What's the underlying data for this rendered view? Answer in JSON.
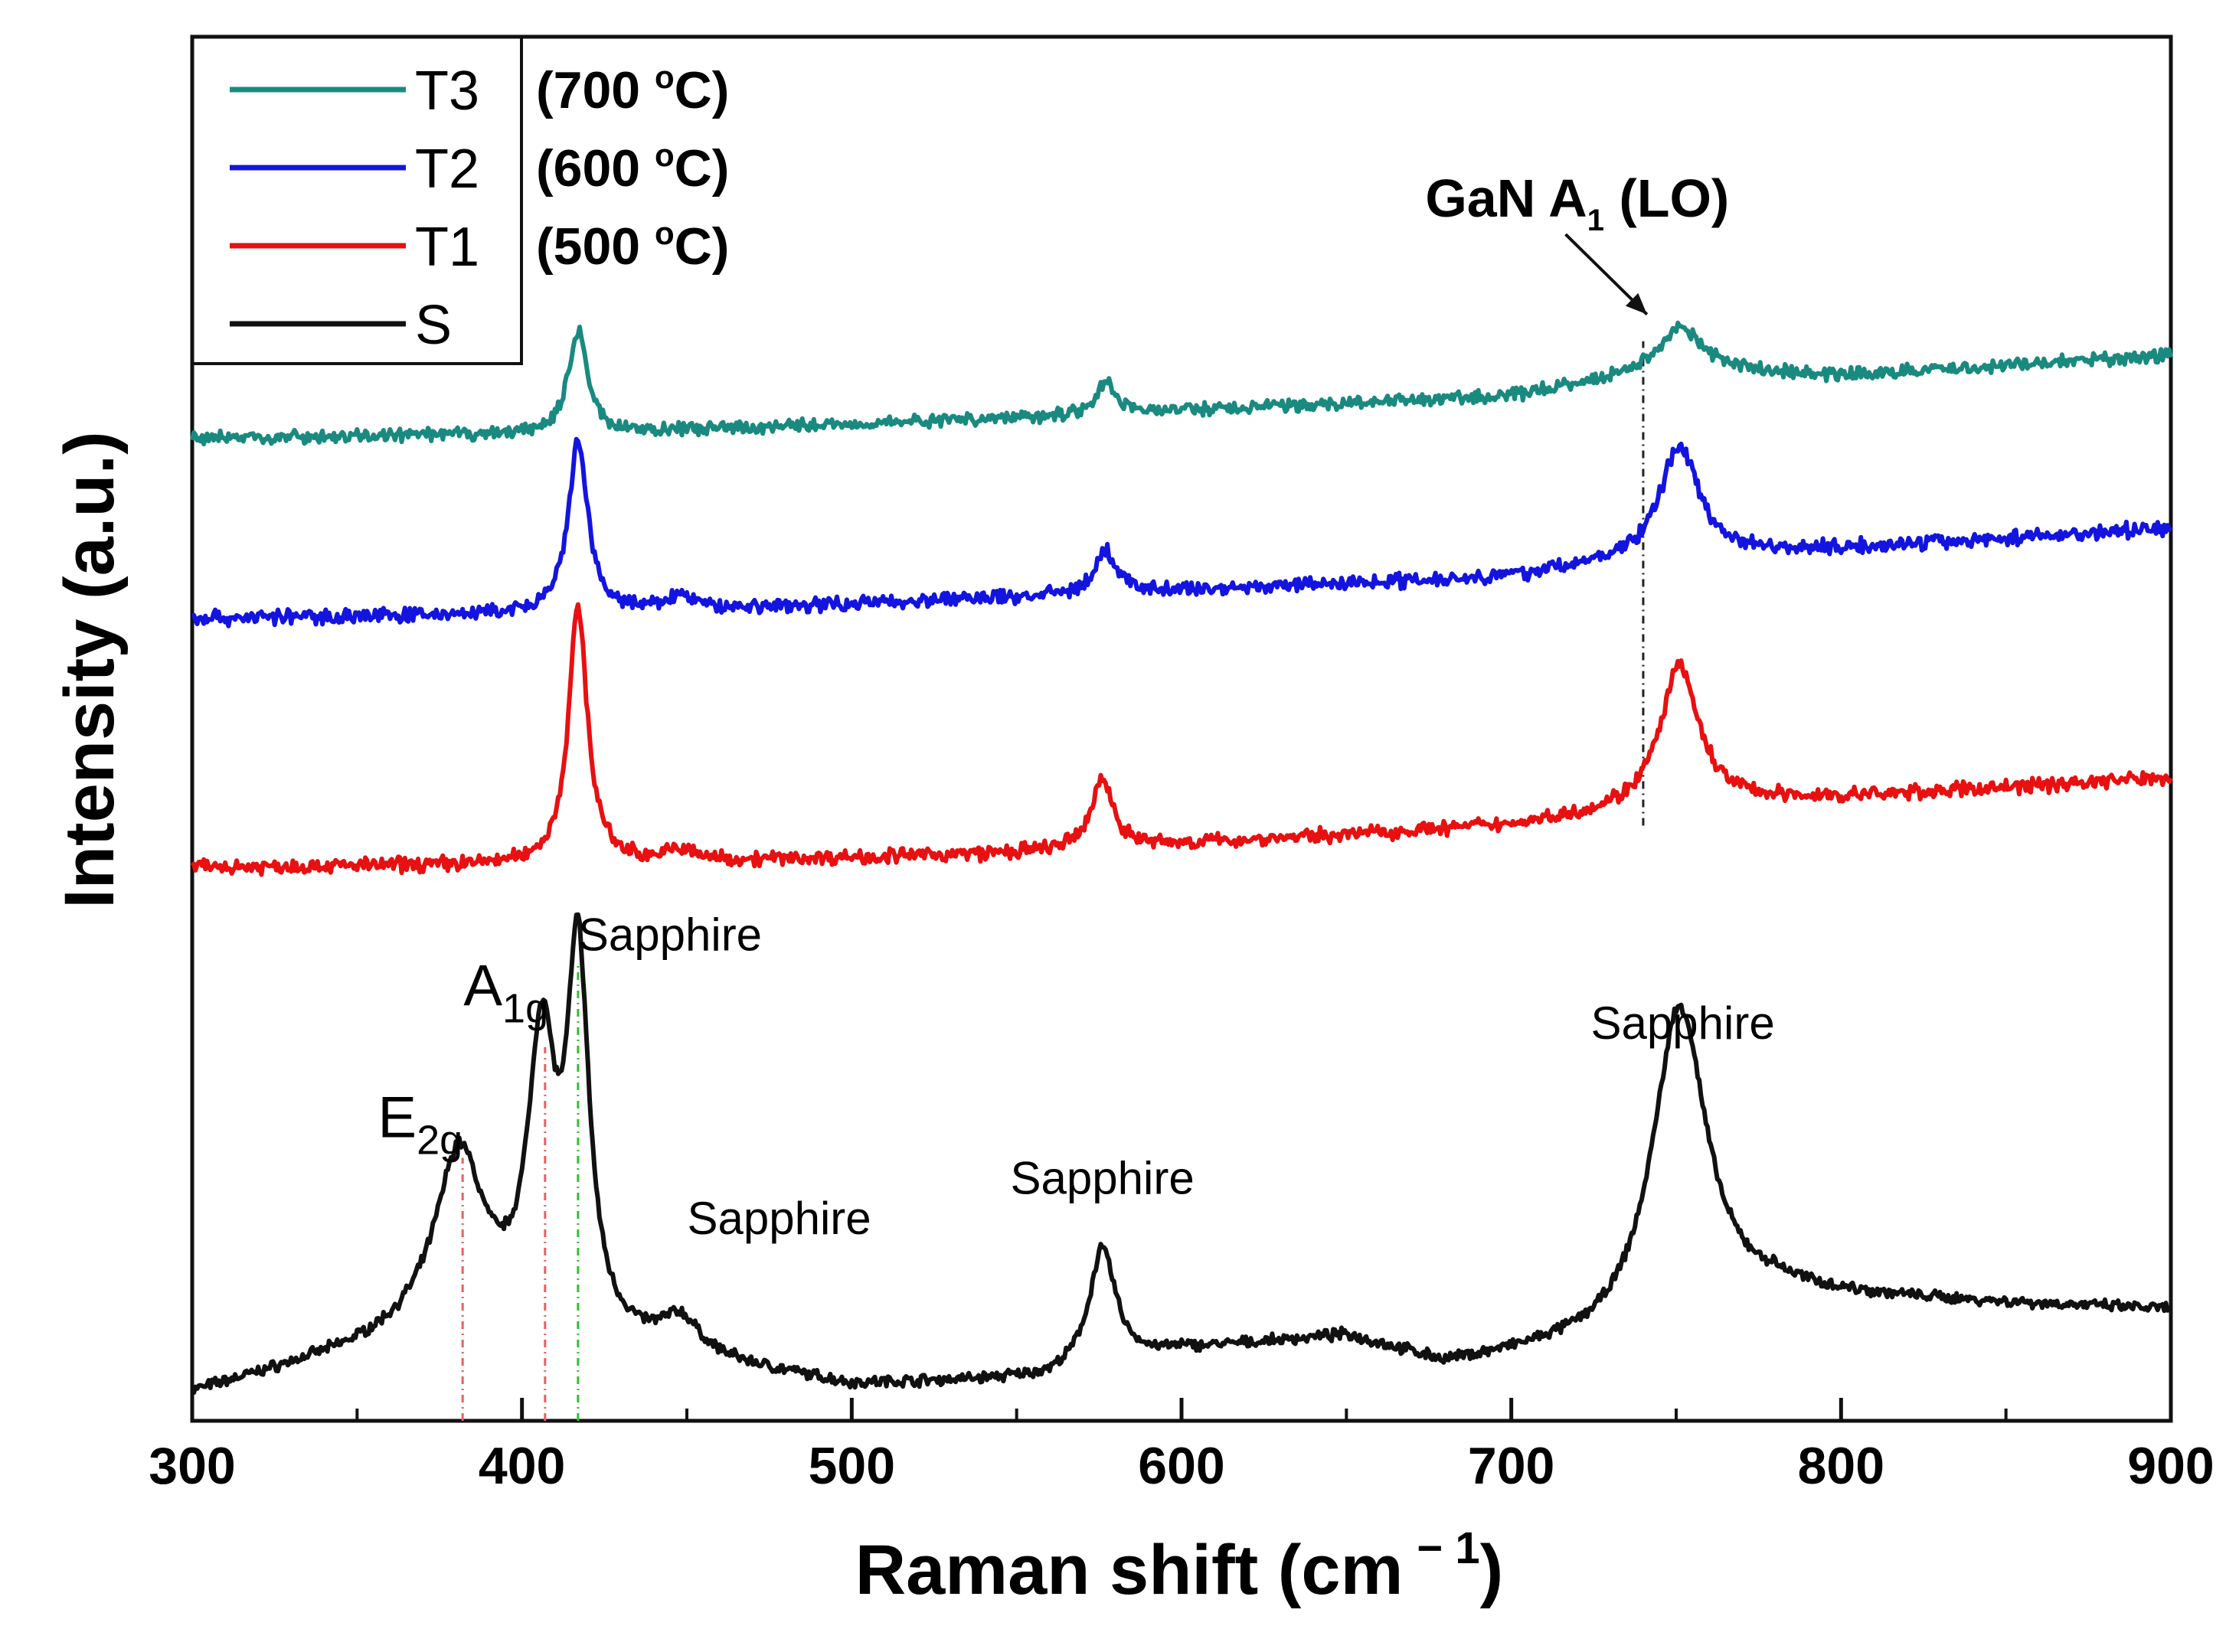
{
  "chart_data": {
    "type": "line",
    "title": "",
    "xlabel": "Raman shift (cm",
    "xlabel_sup": "− 1",
    "xlabel_close": ")",
    "ylabel": "Intensity (a.u.)",
    "xlim": [
      300,
      900
    ],
    "xticks": [
      300,
      400,
      500,
      600,
      700,
      800,
      900
    ],
    "xtick_labels": [
      "300",
      "400",
      "500",
      "600",
      "700",
      "800",
      "900"
    ],
    "ylim": [
      0,
      100
    ],
    "yticks_shown": false,
    "series": [
      {
        "name": "T3",
        "legend_label": "T3",
        "temperature": "(700 °C)",
        "temp_prefix": "(700 ",
        "temp_deg": "o",
        "temp_suffix": "C)",
        "color": "#1a8a80",
        "offset": 71,
        "baseline": [
          [
            300,
            0
          ],
          [
            420,
            0.3
          ],
          [
            550,
            1.5
          ],
          [
            700,
            3
          ],
          [
            750,
            5
          ],
          [
            800,
            4.5
          ],
          [
            900,
            6
          ]
        ],
        "peaks": [
          [
            417,
            7.5,
            3.5
          ],
          [
            577,
            2.3,
            3.5
          ],
          [
            751,
            3.0,
            8
          ]
        ],
        "noise": 0.35
      },
      {
        "name": "T2",
        "legend_label": "T2",
        "temperature": "(600 °C)",
        "temp_prefix": "(600 ",
        "temp_deg": "o",
        "temp_suffix": "C)",
        "color": "#1414e0",
        "offset": 58,
        "baseline": [
          [
            300,
            0
          ],
          [
            420,
            0.3
          ],
          [
            550,
            1.5
          ],
          [
            700,
            3
          ],
          [
            750,
            4.5
          ],
          [
            800,
            5
          ],
          [
            900,
            6.5
          ]
        ],
        "peaks": [
          [
            417,
            12.5,
            3.5
          ],
          [
            448,
            1.0,
            5
          ],
          [
            577,
            3.0,
            4
          ],
          [
            751,
            8.0,
            7
          ]
        ],
        "noise": 0.4
      },
      {
        "name": "T1",
        "legend_label": "T1",
        "temperature": "(500 °C)",
        "temp_prefix": "(500 ",
        "temp_deg": "o",
        "temp_suffix": "C)",
        "color": "#e81010",
        "offset": 40,
        "baseline": [
          [
            300,
            0
          ],
          [
            420,
            0.2
          ],
          [
            550,
            1.0
          ],
          [
            700,
            3
          ],
          [
            750,
            4.5
          ],
          [
            800,
            5
          ],
          [
            900,
            6.5
          ]
        ],
        "peaks": [
          [
            417,
            18.5,
            3.5
          ],
          [
            448,
            0.8,
            5
          ],
          [
            576,
            5.0,
            4
          ],
          [
            751,
            10.0,
            7
          ]
        ],
        "noise": 0.4
      },
      {
        "name": "S",
        "legend_label": "S",
        "temperature": "",
        "color": "#111111",
        "offset": 2,
        "baseline": [
          [
            300,
            0
          ],
          [
            350,
            3
          ],
          [
            380,
            5
          ],
          [
            460,
            2
          ],
          [
            500,
            0.5
          ],
          [
            560,
            1.0
          ],
          [
            600,
            3
          ],
          [
            650,
            4
          ],
          [
            680,
            2
          ],
          [
            730,
            3.5
          ],
          [
            780,
            7
          ],
          [
            900,
            6
          ]
        ],
        "peaks": [
          [
            381,
            12.0,
            9
          ],
          [
            406,
            20.0,
            5
          ],
          [
            417,
            26.5,
            4
          ],
          [
            448,
            2.5,
            7
          ],
          [
            576,
            8.5,
            5
          ],
          [
            751,
            23.0,
            10
          ]
        ],
        "noise": 0.3
      }
    ],
    "annotations": [
      {
        "text": "Sapphire",
        "x": 417,
        "y": 34.0,
        "anchor": "start"
      },
      {
        "text": "Sapphire",
        "x": 478,
        "y": 13.5,
        "anchor": "middle"
      },
      {
        "text": "Sapphire",
        "x": 576,
        "y": 16.4,
        "anchor": "middle"
      },
      {
        "text": "Sapphire",
        "x": 752,
        "y": 27.6,
        "anchor": "middle"
      }
    ],
    "mode_labels": [
      {
        "base": "E",
        "sub": "2g",
        "x": 382,
        "y": 20.5
      },
      {
        "base": "A",
        "sub": "1g",
        "x": 408,
        "y": 30.0
      }
    ],
    "gan_label": {
      "base": "GaN A",
      "sub": "1",
      "rest": " (LO)",
      "x": 720,
      "y": 87.0
    },
    "gan_arrow": {
      "from": [
        742,
        86.5
      ],
      "to": [
        743,
        79.5
      ]
    },
    "reference_lines": [
      {
        "x": 382,
        "color": "#e86060",
        "from": 0,
        "to": 19
      },
      {
        "x": 407,
        "color": "#e86060",
        "from": 0,
        "to": 27
      },
      {
        "x": 417,
        "color": "#30c030",
        "from": 0,
        "to": 33
      },
      {
        "x": 740,
        "color": "#222222",
        "from": 43,
        "to": 78
      }
    ],
    "legend_position": "top-left"
  }
}
